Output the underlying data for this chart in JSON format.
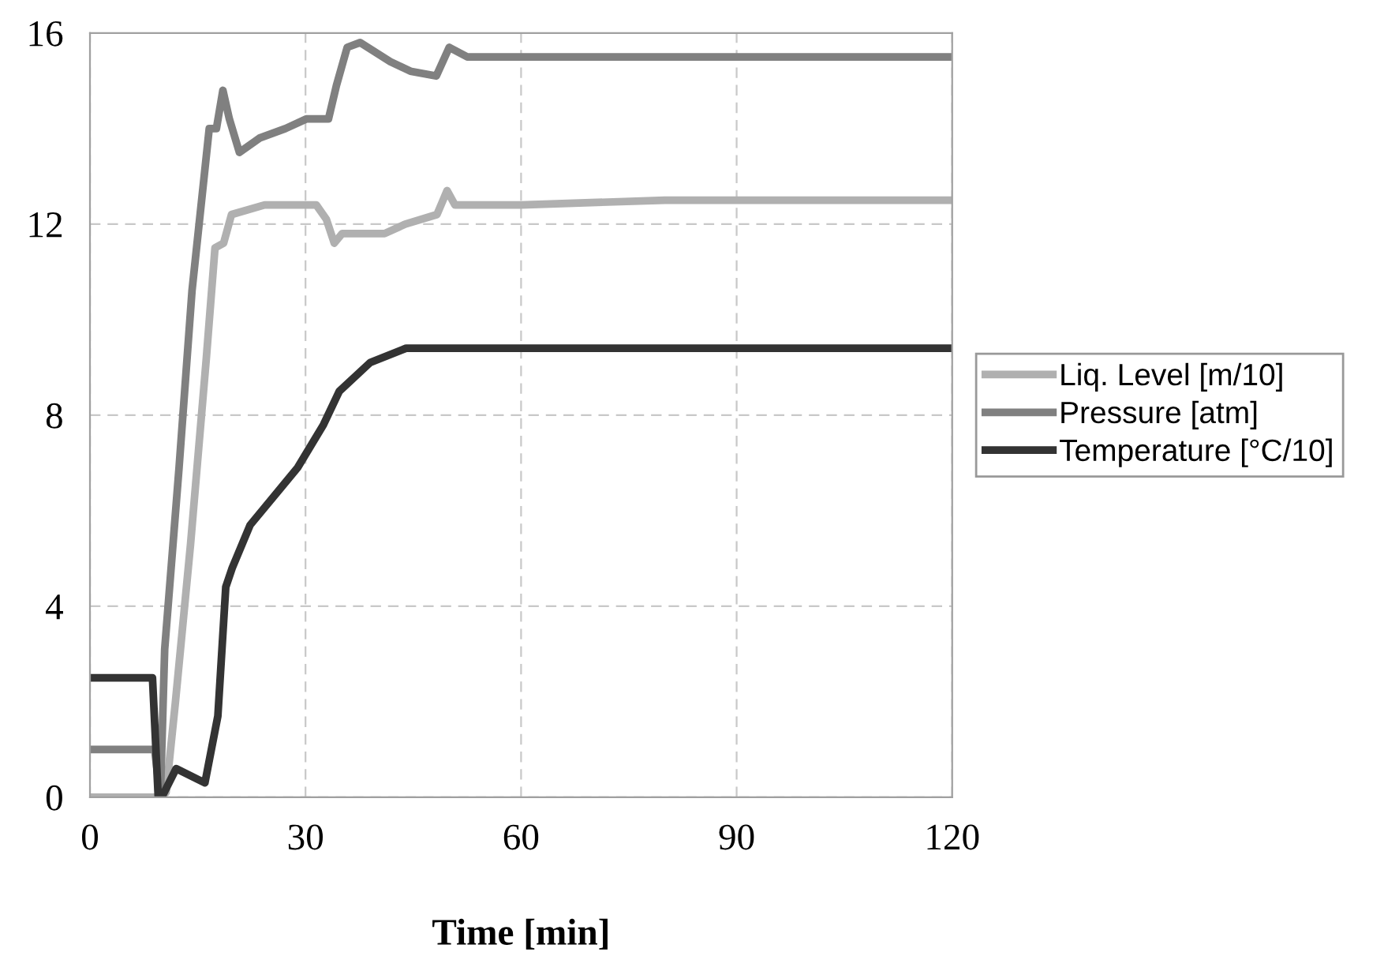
{
  "chart_data": {
    "type": "line",
    "xlabel": "Time [min]",
    "xlim": [
      0,
      120
    ],
    "xticks": [
      0,
      30,
      60,
      90,
      120
    ],
    "ylim": [
      0,
      16
    ],
    "yticks": [
      0,
      4,
      8,
      12,
      16
    ],
    "grid": true,
    "legend": "right",
    "line_style": "solid",
    "series": [
      {
        "name": "Liq. Level [m/10]",
        "color": "#b0b0b0",
        "x": [
          0,
          10,
          10.6,
          11.9,
          14,
          16.2,
          17.4,
          18.6,
          19.7,
          24.3,
          31.5,
          32.9,
          34,
          35.1,
          41,
          43.9,
          48.3,
          49.7,
          50.8,
          60,
          80,
          120
        ],
        "values": [
          0,
          0,
          0.1,
          2.0,
          5.3,
          9.2,
          11.5,
          11.6,
          12.2,
          12.4,
          12.4,
          12.1,
          11.6,
          11.8,
          11.8,
          12.0,
          12.2,
          12.7,
          12.4,
          12.4,
          12.5,
          12.5
        ]
      },
      {
        "name": "Pressure [atm]",
        "color": "#808080",
        "x": [
          0,
          9,
          9.8,
          10.4,
          12.4,
          14.2,
          16.6,
          17.6,
          18.5,
          19.4,
          20.8,
          23.6,
          27.2,
          30.1,
          33.2,
          34.3,
          35.8,
          37.6,
          41.8,
          44.6,
          48.2,
          50,
          52.5,
          120
        ],
        "values": [
          1.0,
          1.0,
          0,
          3.1,
          6.9,
          10.6,
          14.0,
          14.0,
          14.8,
          14.2,
          13.5,
          13.8,
          14.0,
          14.2,
          14.2,
          14.9,
          15.7,
          15.8,
          15.4,
          15.2,
          15.1,
          15.7,
          15.5,
          15.5
        ]
      },
      {
        "name": "Temperature [°C/10]",
        "color": "#333333",
        "x": [
          0,
          8.7,
          9.5,
          10,
          12,
          16,
          17.8,
          18.9,
          19.8,
          22.3,
          26.7,
          28.9,
          32.5,
          34.7,
          39,
          44,
          49,
          120
        ],
        "values": [
          2.5,
          2.5,
          0,
          0,
          0.6,
          0.3,
          1.7,
          4.4,
          4.8,
          5.7,
          6.5,
          6.9,
          7.8,
          8.5,
          9.1,
          9.4,
          9.4,
          9.4
        ]
      }
    ]
  }
}
